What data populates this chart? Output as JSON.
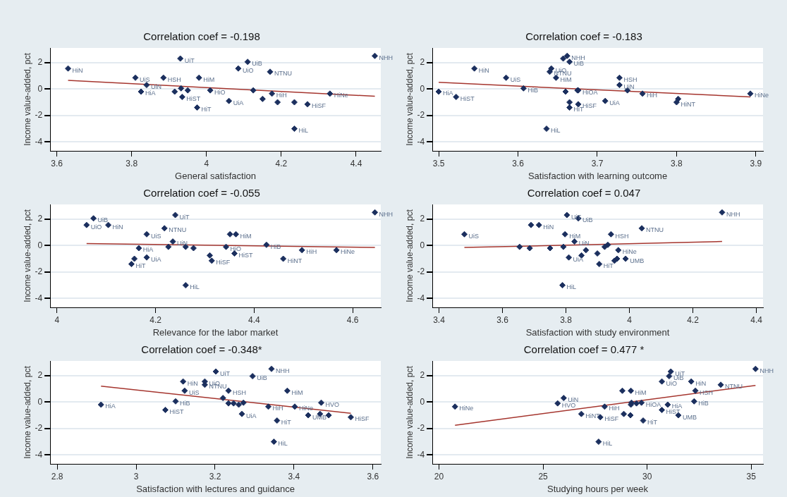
{
  "chart_data": [
    {
      "type": "scatter",
      "title": "Correlation coef = -0.198",
      "xlabel": "General satisfaction",
      "ylabel": "Income value-added, pct",
      "xlim": [
        3.582,
        4.466
      ],
      "xticks": [
        3.6,
        3.8,
        4,
        4.2,
        4.4
      ],
      "ylim": [
        -4.67,
        3.1
      ],
      "yticks": [
        -4,
        -2,
        0,
        2
      ],
      "grid": "y",
      "marker": "diamond",
      "series": [
        {
          "type": "scatter",
          "color": "#1b2f5e",
          "x": [
            3.63,
            3.81,
            3.84,
            3.825,
            3.885,
            3.915,
            3.93,
            3.932,
            3.935,
            3.95,
            3.98,
            3.975,
            4.01,
            4.06,
            4.085,
            4.11,
            4.125,
            4.17,
            4.15,
            4.175,
            4.19,
            4.235,
            4.235,
            4.27,
            4.33,
            4.45
          ],
          "values": [
            1.55,
            0.85,
            0.3,
            -0.2,
            0.85,
            -0.2,
            2.3,
            0.05,
            -0.6,
            -0.1,
            0.85,
            -1.4,
            -0.1,
            -0.9,
            1.55,
            2.05,
            -0.1,
            1.3,
            -0.75,
            -0.35,
            -1.0,
            -3.0,
            -1.0,
            -1.15,
            -0.35,
            2.5
          ],
          "value_labels": [
            "HiN",
            "UiS",
            "UiN",
            "HiA",
            "HSH",
            null,
            "UiT",
            null,
            "HiST",
            null,
            "HiM",
            "HiT",
            "HiO",
            "UiA",
            "UiO",
            "UiB",
            null,
            "NTNU",
            null,
            "HiH",
            null,
            "HiL",
            null,
            "HiSF",
            "HiNe",
            "NHH"
          ]
        },
        {
          "type": "line",
          "color": "#a5352e",
          "x": [
            3.63,
            4.45
          ],
          "values": [
            0.65,
            -0.55
          ],
          "marker": "none"
        }
      ]
    },
    {
      "type": "scatter",
      "title": "Correlation coef = -0.183",
      "xlabel": "Satisfaction with learning outcome",
      "ylabel": "Income value-added, pct",
      "xlim": [
        3.492,
        3.909
      ],
      "xticks": [
        3.5,
        3.6,
        3.7,
        3.8,
        3.9
      ],
      "ylim": [
        -4.67,
        3.1
      ],
      "yticks": [
        -4,
        -2,
        0,
        2
      ],
      "grid": "y",
      "marker": "diamond",
      "series": [
        {
          "type": "scatter",
          "color": "#1b2f5e",
          "x": [
            3.5,
            3.522,
            3.545,
            3.585,
            3.607,
            3.636,
            3.64,
            3.642,
            3.648,
            3.657,
            3.66,
            3.662,
            3.665,
            3.665,
            3.665,
            3.675,
            3.676,
            3.676,
            3.71,
            3.728,
            3.728,
            3.738,
            3.757,
            3.8,
            3.802,
            3.893
          ],
          "values": [
            -0.2,
            -0.6,
            1.55,
            0.85,
            0.05,
            -3.0,
            1.3,
            1.55,
            0.85,
            2.3,
            -0.2,
            2.5,
            2.05,
            -1.0,
            -1.4,
            -0.1,
            -0.1,
            -1.15,
            -0.9,
            0.85,
            0.3,
            -0.1,
            -0.35,
            -1.0,
            -0.75,
            -0.35
          ],
          "value_labels": [
            "HiA",
            "HiST",
            "HiN",
            "UiS",
            "HiB",
            "HiL",
            "NTNU",
            "UiO",
            "HiM",
            null,
            null,
            "NHH",
            "UiB",
            null,
            "HiT",
            null,
            "HiOA",
            "HiSF",
            "UiA",
            "HSH",
            "UiN",
            null,
            "HiH",
            "HiNT",
            null,
            "HiNe"
          ]
        },
        {
          "type": "line",
          "color": "#a5352e",
          "x": [
            3.5,
            3.893
          ],
          "values": [
            0.5,
            -0.6
          ],
          "marker": "none"
        }
      ]
    },
    {
      "type": "scatter",
      "title": "Correlation coef = -0.055",
      "xlabel": "Relevance for the labor market",
      "ylabel": "Income value-added, pct",
      "xlim": [
        3.986,
        4.657
      ],
      "xticks": [
        4,
        4.2,
        4.4,
        4.6
      ],
      "ylim": [
        -4.67,
        3.1
      ],
      "yticks": [
        -4,
        -2,
        0,
        2
      ],
      "grid": "y",
      "marker": "diamond",
      "series": [
        {
          "type": "scatter",
          "color": "#1b2f5e",
          "x": [
            4.06,
            4.074,
            4.104,
            4.166,
            4.151,
            4.157,
            4.182,
            4.182,
            4.218,
            4.235,
            4.226,
            4.24,
            4.261,
            4.261,
            4.277,
            4.31,
            4.314,
            4.343,
            4.351,
            4.363,
            4.36,
            4.425,
            4.459,
            4.497,
            4.567,
            4.645
          ],
          "values": [
            1.55,
            2.05,
            1.55,
            -0.2,
            -1.4,
            -1.0,
            0.85,
            -0.9,
            1.3,
            0.3,
            -0.1,
            2.3,
            -3.0,
            -0.1,
            -0.2,
            -0.75,
            -1.15,
            -0.1,
            0.85,
            0.85,
            -0.6,
            0.05,
            -1.0,
            -0.35,
            -0.35,
            2.5
          ],
          "value_labels": [
            "UiO",
            "UiB",
            "HiN",
            "HiA",
            "HiT",
            null,
            "UiS",
            "UiA",
            "NTNU",
            "UiN",
            null,
            "UiT",
            "HiL",
            null,
            null,
            null,
            "HiSF",
            "HiO",
            null,
            "HiM",
            "HiST",
            "HiB",
            "HiNT",
            "HiH",
            "HiNe",
            "NHH"
          ]
        },
        {
          "type": "line",
          "color": "#a5352e",
          "x": [
            4.06,
            4.645
          ],
          "values": [
            0.15,
            -0.15
          ],
          "marker": "none"
        }
      ]
    },
    {
      "type": "scatter",
      "title": "Correlation coef = 0.047",
      "xlabel": "Satisfaction with study environment",
      "ylabel": "Income value-added, pct",
      "xlim": [
        3.379,
        4.421
      ],
      "xticks": [
        3.4,
        3.6,
        3.8,
        4,
        4.2,
        4.4
      ],
      "ylim": [
        -4.67,
        3.1
      ],
      "yticks": [
        -4,
        -2,
        0,
        2
      ],
      "grid": "y",
      "marker": "diamond",
      "series": [
        {
          "type": "scatter",
          "color": "#1b2f5e",
          "x": [
            3.48,
            3.69,
            3.715,
            3.654,
            3.686,
            3.75,
            3.792,
            3.797,
            3.789,
            3.803,
            3.809,
            3.827,
            3.839,
            3.849,
            3.863,
            3.899,
            3.905,
            3.922,
            3.932,
            3.942,
            3.953,
            3.961,
            3.965,
            3.988,
            4.039,
            4.292
          ],
          "values": [
            0.85,
            1.55,
            1.55,
            -0.1,
            -0.2,
            -0.2,
            -0.1,
            0.85,
            -3.0,
            2.3,
            -0.9,
            0.3,
            2.05,
            -0.75,
            -0.35,
            -0.6,
            -1.4,
            -0.1,
            0.05,
            0.85,
            -1.15,
            -1.0,
            -0.35,
            -1.0,
            1.3,
            2.5
          ],
          "value_labels": [
            "UiS",
            null,
            "HiN",
            null,
            null,
            null,
            null,
            "HiM",
            "HiL",
            "UiT",
            "UiA",
            "UiN",
            "UiB",
            null,
            null,
            null,
            "HiT",
            null,
            null,
            "HSH",
            null,
            null,
            "HiNe",
            "UMB",
            "NTNU",
            "NHH"
          ]
        },
        {
          "type": "line",
          "color": "#a5352e",
          "x": [
            3.48,
            4.292
          ],
          "values": [
            -0.15,
            0.3
          ],
          "marker": "none"
        }
      ]
    },
    {
      "type": "scatter",
      "title": "Correlation coef = -0.348*",
      "xlabel": "Satisfaction with lectures and guidance",
      "ylabel": "Income value-added, pct",
      "xlim": [
        2.782,
        3.62
      ],
      "xticks": [
        2.8,
        3,
        3.2,
        3.4,
        3.6
      ],
      "ylim": [
        -4.67,
        3.1
      ],
      "yticks": [
        -4,
        -2,
        0,
        2
      ],
      "grid": "y",
      "marker": "diamond",
      "series": [
        {
          "type": "scatter",
          "color": "#1b2f5e",
          "x": [
            2.911,
            3.074,
            3.1,
            3.119,
            3.123,
            3.174,
            3.174,
            3.202,
            3.22,
            3.234,
            3.234,
            3.247,
            3.26,
            3.272,
            3.268,
            3.295,
            3.343,
            3.335,
            3.349,
            3.357,
            3.383,
            3.402,
            3.436,
            3.466,
            3.469,
            3.488,
            3.544
          ],
          "values": [
            -0.2,
            -0.6,
            0.05,
            1.55,
            0.85,
            1.55,
            1.3,
            2.3,
            0.3,
            0.85,
            -0.1,
            -0.1,
            -0.2,
            -0.05,
            -0.9,
            1.95,
            2.5,
            -0.35,
            -3.0,
            -1.4,
            0.85,
            -0.35,
            -1.0,
            -0.9,
            -0.05,
            -1.0,
            -1.15
          ],
          "value_labels": [
            "HiA",
            "HiST",
            "HiB",
            "HiN",
            "UiS",
            "UiO",
            "NTNU",
            "UiT",
            null,
            "HSH",
            null,
            null,
            null,
            null,
            "UiA",
            "UiB",
            "NHH",
            "HiH",
            "HiL",
            "HiT",
            "HiM",
            "HiNe",
            "UMB",
            null,
            "HVO",
            null,
            "HiSF"
          ]
        },
        {
          "type": "line",
          "color": "#a5352e",
          "x": [
            2.911,
            3.544
          ],
          "values": [
            1.2,
            -0.85
          ],
          "marker": "none"
        }
      ]
    },
    {
      "type": "scatter",
      "title": "Correlation coef = 0.477 *",
      "xlabel": "Studying hours per week",
      "ylabel": "Income value-added, pct",
      "xlim": [
        19.68,
        35.57
      ],
      "xticks": [
        20,
        25,
        30,
        35
      ],
      "ylim": [
        -4.67,
        3.1
      ],
      "yticks": [
        -4,
        -2,
        0,
        2
      ],
      "grid": "y",
      "marker": "diamond",
      "series": [
        {
          "type": "scatter",
          "color": "#1b2f5e",
          "x": [
            20.77,
            25.7,
            25.99,
            26.84,
            27.67,
            27.75,
            27.96,
            28.81,
            29.22,
            28.88,
            29.2,
            29.22,
            29.25,
            29.49,
            29.73,
            29.81,
            30.71,
            30.71,
            30.99,
            31.06,
            31.14,
            31.5,
            32.12,
            32.32,
            32.26,
            33.54,
            35.21
          ],
          "values": [
            -0.35,
            -0.1,
            0.3,
            -0.9,
            -3.0,
            -1.15,
            -0.35,
            0.85,
            0.85,
            -0.9,
            -1.0,
            -0.2,
            -0.05,
            -0.1,
            -0.05,
            -1.4,
            1.55,
            -0.6,
            -0.2,
            1.95,
            2.3,
            -1.0,
            1.55,
            0.85,
            0.05,
            1.3,
            2.5
          ],
          "value_labels": [
            "HiNe",
            "HVO",
            "UiN",
            "HiNT",
            "HiL",
            "HiSF",
            "HiH",
            null,
            "HiM",
            null,
            null,
            null,
            null,
            null,
            "HiOA",
            "HiT",
            "UiO",
            "HiST",
            "HiA",
            "UiB",
            "UiT",
            "UMB",
            "HiN",
            "HSH",
            "HiB",
            "NTNU",
            "NHH"
          ]
        },
        {
          "type": "line",
          "color": "#a5352e",
          "x": [
            20.77,
            35.21
          ],
          "values": [
            -1.75,
            1.25
          ],
          "marker": "none"
        }
      ]
    }
  ]
}
